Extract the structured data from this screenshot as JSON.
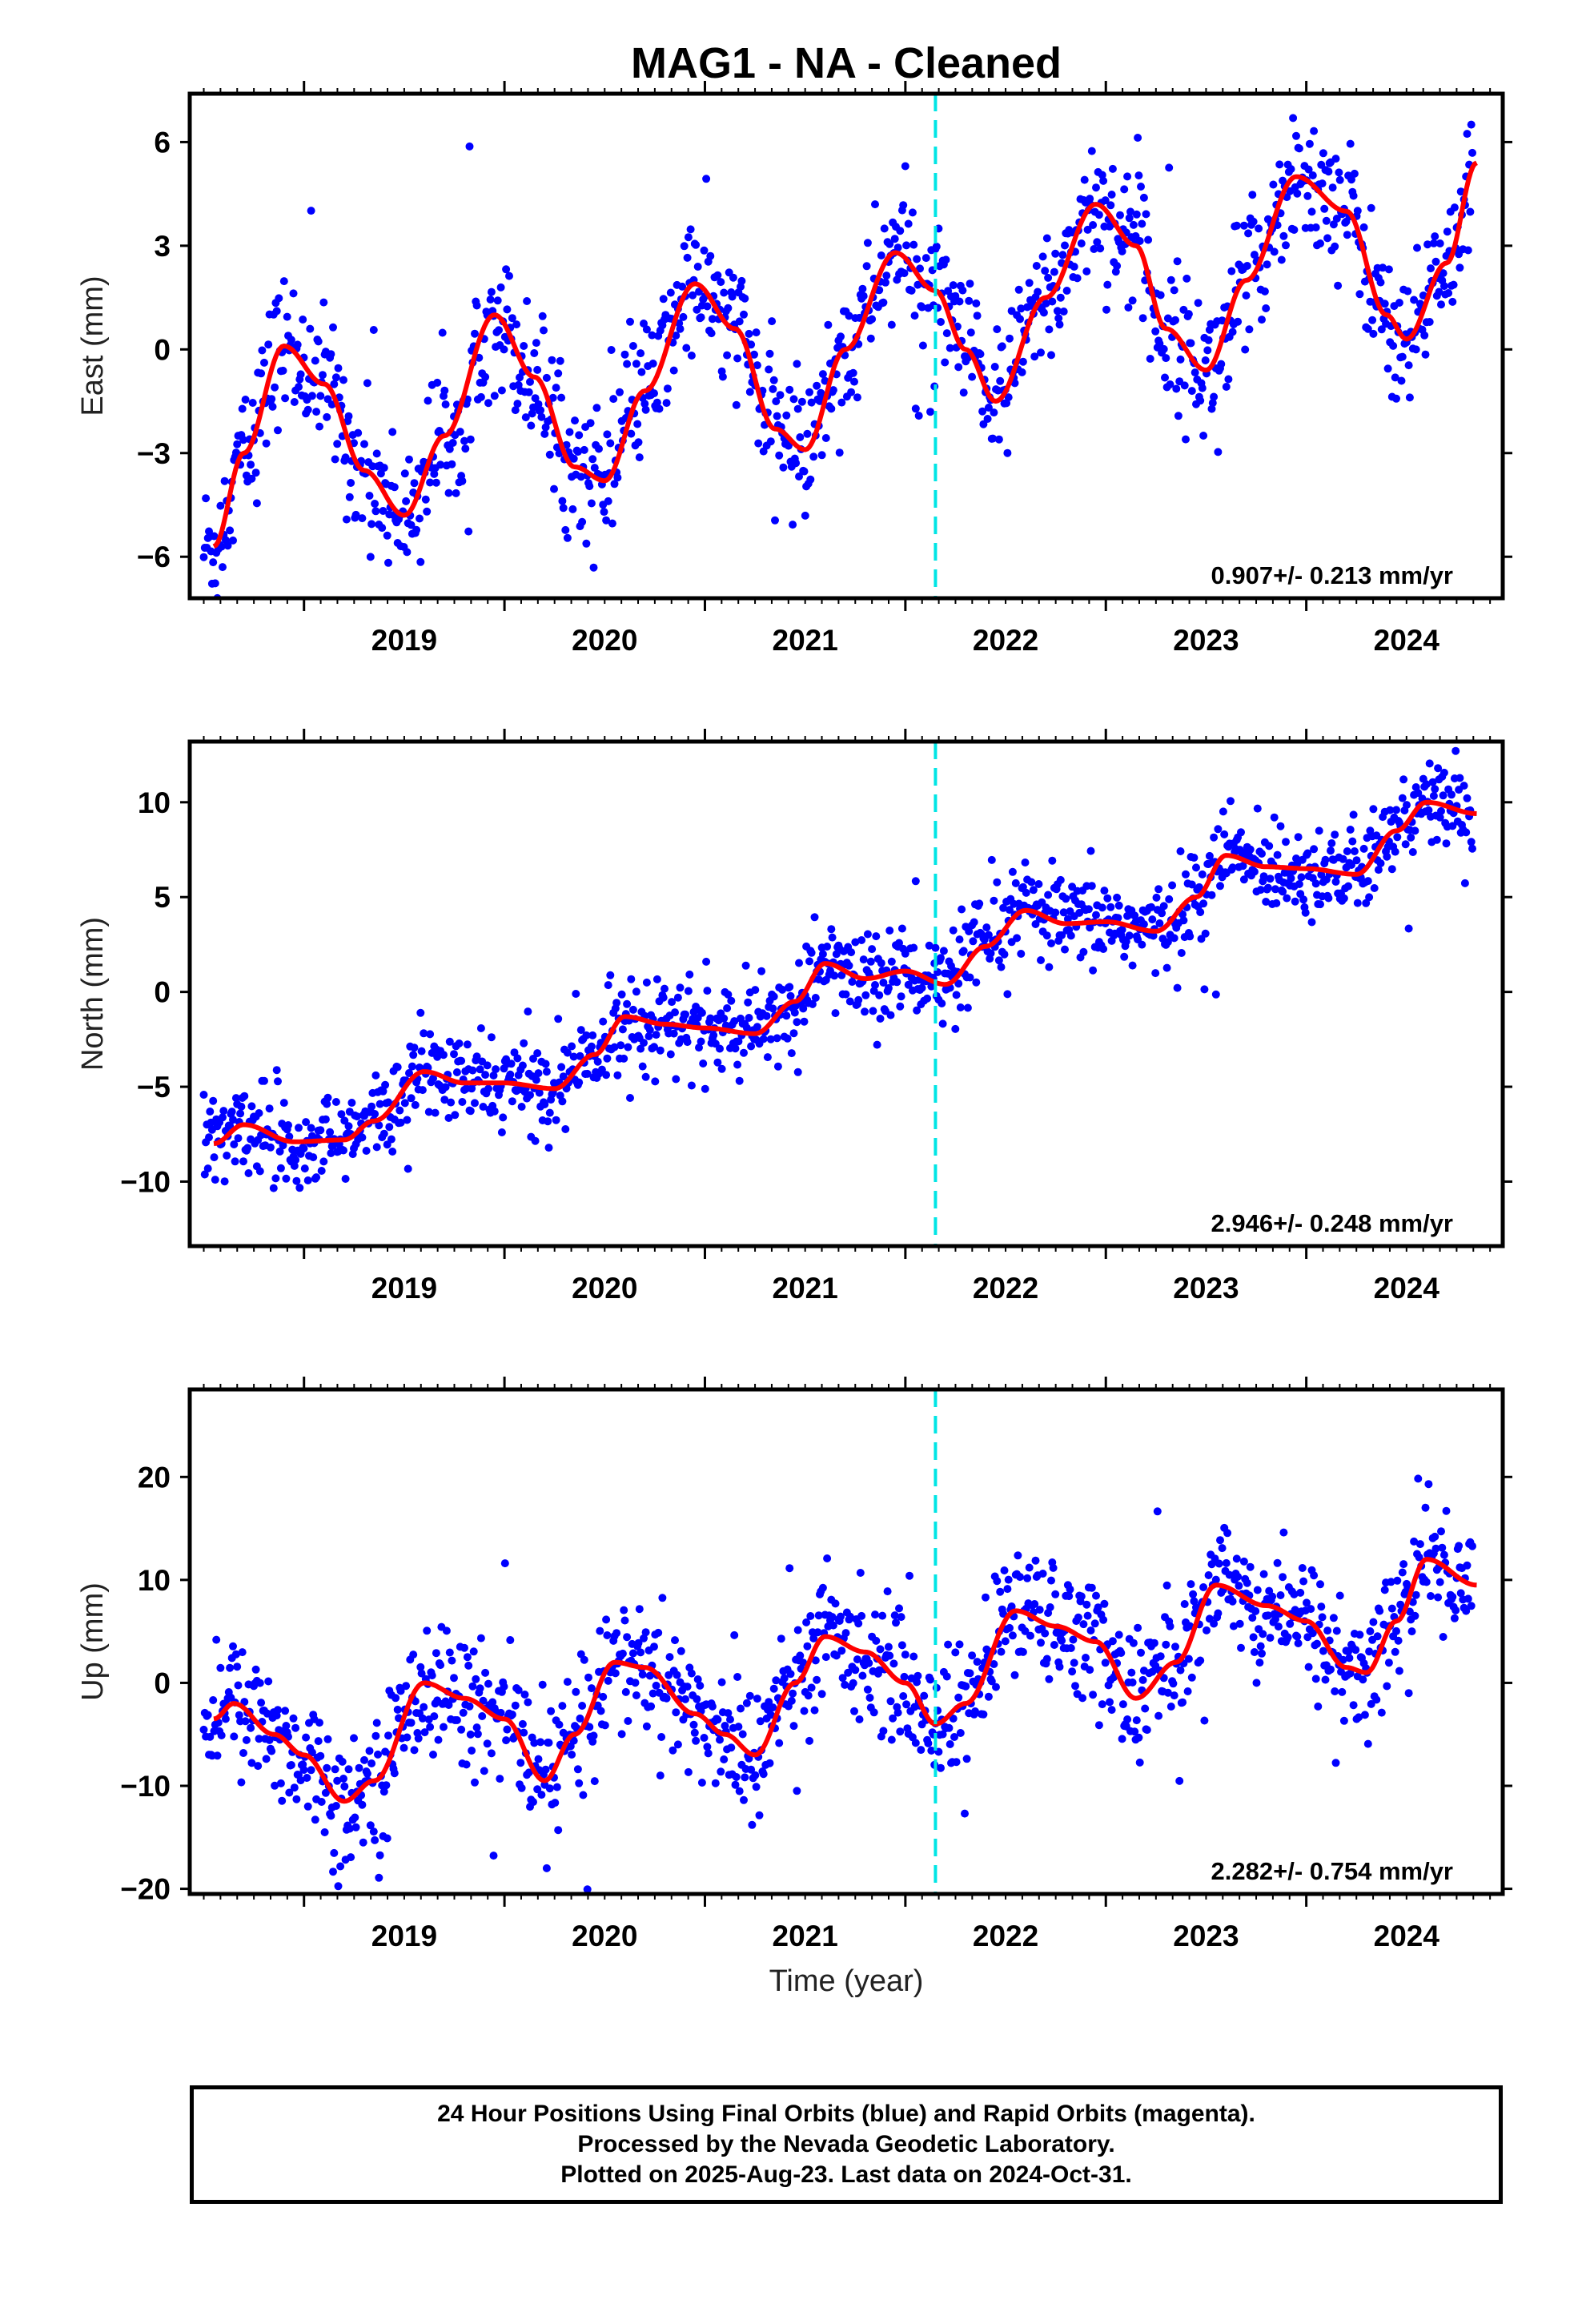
{
  "chart_data": {
    "title": "MAG1  - NA - Cleaned",
    "type": "scatter",
    "x_ticks": [
      "2019",
      "2020",
      "2021",
      "2022",
      "2023",
      "2024"
    ],
    "xlim": [
      2018.43,
      2024.98
    ],
    "xlabel": "Time (year)",
    "colors": {
      "points": "#0000ff",
      "fit": "#ff0000",
      "event": "#00e5e5"
    },
    "event_line_x": 2022.15,
    "panels": [
      {
        "ylabel": "East (mm)",
        "ylim": [
          -7.2,
          7.4
        ],
        "y_ticks": [
          6,
          3,
          0,
          -3,
          -6
        ],
        "y_tick_labels": [
          "6",
          "3",
          "0",
          "−3",
          "−6"
        ],
        "rate_label": "0.907+/- 0.213 mm/yr",
        "noise": 1.0,
        "fit": {
          "x": [
            2018.55,
            2018.7,
            2018.9,
            2019.1,
            2019.3,
            2019.5,
            2019.7,
            2019.95,
            2020.15,
            2020.35,
            2020.5,
            2020.7,
            2020.95,
            2021.15,
            2021.35,
            2021.5,
            2021.7,
            2021.95,
            2022.15,
            2022.3,
            2022.45,
            2022.7,
            2022.95,
            2023.15,
            2023.3,
            2023.5,
            2023.7,
            2023.95,
            2024.2,
            2024.4,
            2024.5,
            2024.7,
            2024.85
          ],
          "y": [
            -5.7,
            -3.0,
            0.1,
            -1.0,
            -3.5,
            -4.8,
            -2.5,
            1.0,
            -0.8,
            -3.4,
            -3.8,
            -1.2,
            1.9,
            0.6,
            -2.3,
            -2.9,
            0.0,
            2.8,
            1.7,
            0.0,
            -1.5,
            1.5,
            4.2,
            3.0,
            0.6,
            -0.6,
            2.0,
            5.0,
            4.0,
            1.0,
            0.3,
            2.5,
            5.4
          ]
        }
      },
      {
        "ylabel": "North (mm)",
        "ylim": [
          -13.4,
          13.2
        ],
        "y_ticks": [
          10,
          5,
          0,
          -5,
          -10
        ],
        "y_tick_labels": [
          "10",
          "5",
          "0",
          "−5",
          "−10"
        ],
        "rate_label": "2.946+/- 0.248 mm/yr",
        "noise": 1.2,
        "fit": {
          "x": [
            2018.55,
            2018.7,
            2018.95,
            2019.2,
            2019.35,
            2019.6,
            2019.8,
            2020.0,
            2020.25,
            2020.45,
            2020.6,
            2020.8,
            2021.0,
            2021.25,
            2021.45,
            2021.6,
            2021.8,
            2022.0,
            2022.2,
            2022.4,
            2022.6,
            2022.8,
            2023.0,
            2023.25,
            2023.45,
            2023.6,
            2023.8,
            2024.0,
            2024.25,
            2024.45,
            2024.6,
            2024.85
          ],
          "y": [
            -8.0,
            -7.0,
            -7.9,
            -7.8,
            -6.8,
            -4.2,
            -4.8,
            -4.8,
            -5.1,
            -3.3,
            -1.3,
            -1.7,
            -1.9,
            -2.2,
            -0.5,
            1.5,
            0.7,
            1.1,
            0.4,
            2.4,
            4.3,
            3.6,
            3.7,
            3.2,
            5.0,
            7.2,
            6.6,
            6.5,
            6.2,
            8.5,
            10.0,
            9.4
          ]
        }
      },
      {
        "ylabel": "Up (mm)",
        "ylim": [
          -20.5,
          28.5
        ],
        "y_ticks": [
          20,
          10,
          0,
          -10,
          -20
        ],
        "y_tick_labels": [
          "20",
          "10",
          "0",
          "−10",
          "−20"
        ],
        "rate_label": "2.282+/- 0.754 mm/yr",
        "noise": 3.2,
        "fit": {
          "x": [
            2018.55,
            2018.65,
            2018.85,
            2019.0,
            2019.2,
            2019.35,
            2019.6,
            2019.8,
            2020.0,
            2020.2,
            2020.35,
            2020.55,
            2020.7,
            2020.95,
            2021.1,
            2021.25,
            2021.45,
            2021.6,
            2021.8,
            2022.0,
            2022.15,
            2022.3,
            2022.55,
            2022.75,
            2022.95,
            2023.15,
            2023.35,
            2023.55,
            2023.8,
            2024.0,
            2024.2,
            2024.3,
            2024.45,
            2024.6,
            2024.85
          ],
          "y": [
            -3.5,
            -2.0,
            -5.0,
            -7.0,
            -11.5,
            -9.5,
            0.0,
            -1.5,
            -3.5,
            -9.5,
            -5.0,
            2.0,
            1.5,
            -3.0,
            -5.0,
            -7.0,
            0.0,
            4.5,
            3.0,
            0.0,
            -4.0,
            -2.0,
            7.0,
            5.5,
            4.0,
            -1.5,
            2.0,
            9.5,
            7.5,
            6.0,
            1.5,
            1.0,
            6.0,
            12.0,
            9.5
          ]
        }
      }
    ]
  },
  "footer": {
    "line1": "24 Hour Positions Using Final Orbits (blue) and Rapid Orbits (magenta).",
    "line2": "Processed by the Nevada Geodetic Laboratory.",
    "line3": "Plotted on 2025-Aug-23. Last data on 2024-Oct-31."
  }
}
